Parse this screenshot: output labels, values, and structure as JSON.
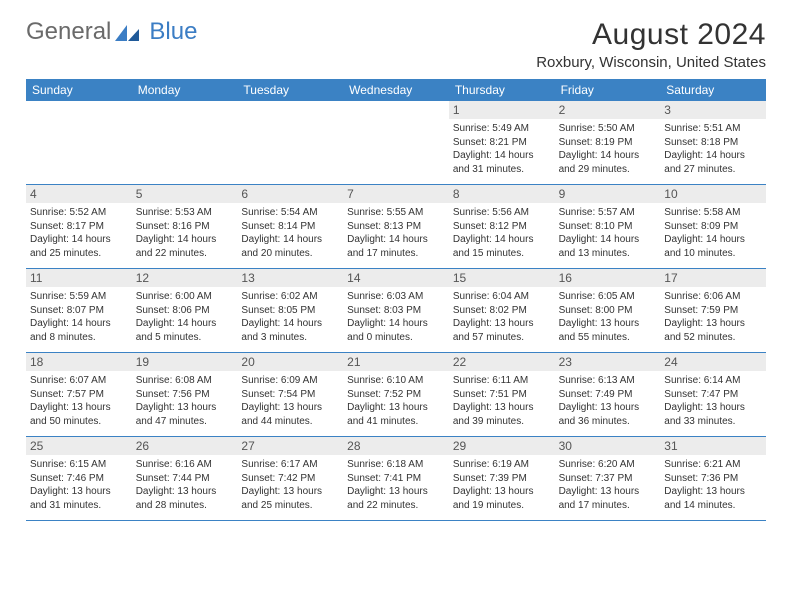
{
  "logo": {
    "part1": "General",
    "part2": "Blue"
  },
  "title": "August 2024",
  "location": "Roxbury, Wisconsin, United States",
  "colors": {
    "header_bg": "#3b82c4",
    "header_text": "#ffffff",
    "daynum_bg": "#ececec",
    "border": "#3b82c4",
    "text": "#333333",
    "logo_gray": "#6a6a6a",
    "logo_blue": "#3b7dc4"
  },
  "weekdays": [
    "Sunday",
    "Monday",
    "Tuesday",
    "Wednesday",
    "Thursday",
    "Friday",
    "Saturday"
  ],
  "weeks": [
    [
      null,
      null,
      null,
      null,
      {
        "day": "1",
        "sunrise": "Sunrise: 5:49 AM",
        "sunset": "Sunset: 8:21 PM",
        "daylight": "Daylight: 14 hours and 31 minutes."
      },
      {
        "day": "2",
        "sunrise": "Sunrise: 5:50 AM",
        "sunset": "Sunset: 8:19 PM",
        "daylight": "Daylight: 14 hours and 29 minutes."
      },
      {
        "day": "3",
        "sunrise": "Sunrise: 5:51 AM",
        "sunset": "Sunset: 8:18 PM",
        "daylight": "Daylight: 14 hours and 27 minutes."
      }
    ],
    [
      {
        "day": "4",
        "sunrise": "Sunrise: 5:52 AM",
        "sunset": "Sunset: 8:17 PM",
        "daylight": "Daylight: 14 hours and 25 minutes."
      },
      {
        "day": "5",
        "sunrise": "Sunrise: 5:53 AM",
        "sunset": "Sunset: 8:16 PM",
        "daylight": "Daylight: 14 hours and 22 minutes."
      },
      {
        "day": "6",
        "sunrise": "Sunrise: 5:54 AM",
        "sunset": "Sunset: 8:14 PM",
        "daylight": "Daylight: 14 hours and 20 minutes."
      },
      {
        "day": "7",
        "sunrise": "Sunrise: 5:55 AM",
        "sunset": "Sunset: 8:13 PM",
        "daylight": "Daylight: 14 hours and 17 minutes."
      },
      {
        "day": "8",
        "sunrise": "Sunrise: 5:56 AM",
        "sunset": "Sunset: 8:12 PM",
        "daylight": "Daylight: 14 hours and 15 minutes."
      },
      {
        "day": "9",
        "sunrise": "Sunrise: 5:57 AM",
        "sunset": "Sunset: 8:10 PM",
        "daylight": "Daylight: 14 hours and 13 minutes."
      },
      {
        "day": "10",
        "sunrise": "Sunrise: 5:58 AM",
        "sunset": "Sunset: 8:09 PM",
        "daylight": "Daylight: 14 hours and 10 minutes."
      }
    ],
    [
      {
        "day": "11",
        "sunrise": "Sunrise: 5:59 AM",
        "sunset": "Sunset: 8:07 PM",
        "daylight": "Daylight: 14 hours and 8 minutes."
      },
      {
        "day": "12",
        "sunrise": "Sunrise: 6:00 AM",
        "sunset": "Sunset: 8:06 PM",
        "daylight": "Daylight: 14 hours and 5 minutes."
      },
      {
        "day": "13",
        "sunrise": "Sunrise: 6:02 AM",
        "sunset": "Sunset: 8:05 PM",
        "daylight": "Daylight: 14 hours and 3 minutes."
      },
      {
        "day": "14",
        "sunrise": "Sunrise: 6:03 AM",
        "sunset": "Sunset: 8:03 PM",
        "daylight": "Daylight: 14 hours and 0 minutes."
      },
      {
        "day": "15",
        "sunrise": "Sunrise: 6:04 AM",
        "sunset": "Sunset: 8:02 PM",
        "daylight": "Daylight: 13 hours and 57 minutes."
      },
      {
        "day": "16",
        "sunrise": "Sunrise: 6:05 AM",
        "sunset": "Sunset: 8:00 PM",
        "daylight": "Daylight: 13 hours and 55 minutes."
      },
      {
        "day": "17",
        "sunrise": "Sunrise: 6:06 AM",
        "sunset": "Sunset: 7:59 PM",
        "daylight": "Daylight: 13 hours and 52 minutes."
      }
    ],
    [
      {
        "day": "18",
        "sunrise": "Sunrise: 6:07 AM",
        "sunset": "Sunset: 7:57 PM",
        "daylight": "Daylight: 13 hours and 50 minutes."
      },
      {
        "day": "19",
        "sunrise": "Sunrise: 6:08 AM",
        "sunset": "Sunset: 7:56 PM",
        "daylight": "Daylight: 13 hours and 47 minutes."
      },
      {
        "day": "20",
        "sunrise": "Sunrise: 6:09 AM",
        "sunset": "Sunset: 7:54 PM",
        "daylight": "Daylight: 13 hours and 44 minutes."
      },
      {
        "day": "21",
        "sunrise": "Sunrise: 6:10 AM",
        "sunset": "Sunset: 7:52 PM",
        "daylight": "Daylight: 13 hours and 41 minutes."
      },
      {
        "day": "22",
        "sunrise": "Sunrise: 6:11 AM",
        "sunset": "Sunset: 7:51 PM",
        "daylight": "Daylight: 13 hours and 39 minutes."
      },
      {
        "day": "23",
        "sunrise": "Sunrise: 6:13 AM",
        "sunset": "Sunset: 7:49 PM",
        "daylight": "Daylight: 13 hours and 36 minutes."
      },
      {
        "day": "24",
        "sunrise": "Sunrise: 6:14 AM",
        "sunset": "Sunset: 7:47 PM",
        "daylight": "Daylight: 13 hours and 33 minutes."
      }
    ],
    [
      {
        "day": "25",
        "sunrise": "Sunrise: 6:15 AM",
        "sunset": "Sunset: 7:46 PM",
        "daylight": "Daylight: 13 hours and 31 minutes."
      },
      {
        "day": "26",
        "sunrise": "Sunrise: 6:16 AM",
        "sunset": "Sunset: 7:44 PM",
        "daylight": "Daylight: 13 hours and 28 minutes."
      },
      {
        "day": "27",
        "sunrise": "Sunrise: 6:17 AM",
        "sunset": "Sunset: 7:42 PM",
        "daylight": "Daylight: 13 hours and 25 minutes."
      },
      {
        "day": "28",
        "sunrise": "Sunrise: 6:18 AM",
        "sunset": "Sunset: 7:41 PM",
        "daylight": "Daylight: 13 hours and 22 minutes."
      },
      {
        "day": "29",
        "sunrise": "Sunrise: 6:19 AM",
        "sunset": "Sunset: 7:39 PM",
        "daylight": "Daylight: 13 hours and 19 minutes."
      },
      {
        "day": "30",
        "sunrise": "Sunrise: 6:20 AM",
        "sunset": "Sunset: 7:37 PM",
        "daylight": "Daylight: 13 hours and 17 minutes."
      },
      {
        "day": "31",
        "sunrise": "Sunrise: 6:21 AM",
        "sunset": "Sunset: 7:36 PM",
        "daylight": "Daylight: 13 hours and 14 minutes."
      }
    ]
  ]
}
